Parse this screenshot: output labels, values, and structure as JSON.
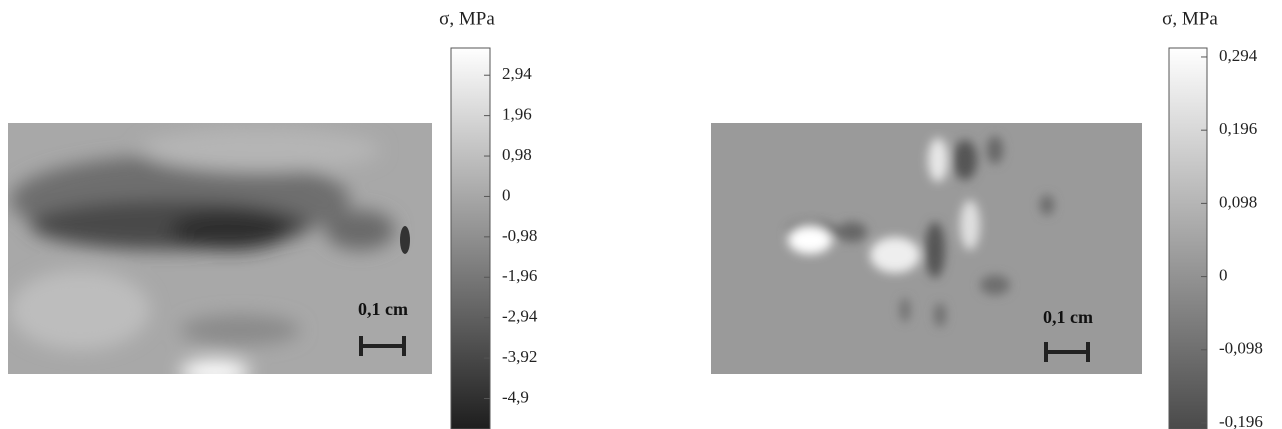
{
  "chart_data": [
    {
      "type": "contour",
      "zlabel": "σ, MPa",
      "annotation": "0,1 cm",
      "zlim": [
        -5.64,
        3.6
      ],
      "zticks": [
        {
          "value": 2.94,
          "label": "2,94"
        },
        {
          "value": 1.96,
          "label": "1,96"
        },
        {
          "value": 0.98,
          "label": "0,98"
        },
        0,
        {
          "value": -0.98,
          "label": "-0,98"
        },
        {
          "value": -1.96,
          "label": "-1,96"
        },
        {
          "value": -2.94,
          "label": "-2,94"
        },
        {
          "value": -3.92,
          "label": "-3,92"
        },
        {
          "value": -4.9,
          "label": "-4,9"
        }
      ]
    },
    {
      "type": "contour",
      "zlabel": "σ, MPa",
      "annotation": "0,1 cm",
      "zlim": [
        -0.204,
        0.306
      ],
      "zticks": [
        {
          "value": 0.294,
          "label": "0,294"
        },
        {
          "value": 0.196,
          "label": "0,196"
        },
        {
          "value": 0.098,
          "label": "0,098"
        },
        0,
        {
          "value": -0.098,
          "label": "-0,098"
        },
        {
          "value": -0.196,
          "label": "-0,196"
        }
      ]
    }
  ]
}
